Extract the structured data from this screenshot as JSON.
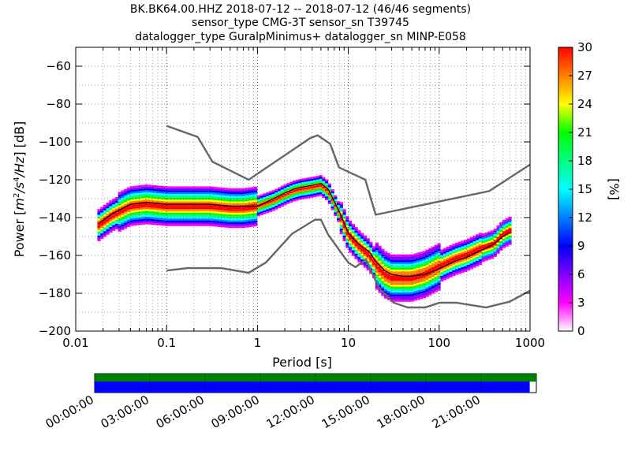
{
  "title": {
    "line1": "BK.BK64.00.HHZ   2018-07-12 -- 2018-07-12  (46/46 segments)",
    "line2": "sensor_type CMG-3T sensor_sn T39745",
    "line3": "datalogger_type GuralpMinimus+ datalogger_sn MINP-E058"
  },
  "chart_data": {
    "type": "heatmap",
    "description_kind": "probabilistic power spectral density",
    "xlabel": "Period [s]",
    "ylabel_parts": [
      "Power [",
      "m",
      "2",
      "/",
      "s",
      "4",
      "/",
      "Hz",
      "] [dB]"
    ],
    "xscale": "log",
    "xlim": [
      0.01,
      1000
    ],
    "ylim": [
      -200,
      -50
    ],
    "xtick_values": [
      0.01,
      0.1,
      1,
      10,
      100,
      1000
    ],
    "xtick_labels": [
      "0.01",
      "0.1",
      "1",
      "10",
      "100",
      "1000"
    ],
    "ytick_values": [
      -200,
      -180,
      -160,
      -140,
      -120,
      -100,
      -80,
      -60
    ],
    "ytick_labels": [
      "−200",
      "−180",
      "−160",
      "−140",
      "−120",
      "−100",
      "−80",
      "−60"
    ],
    "grid": true,
    "mode_curve": {
      "x": [
        0.018,
        0.025,
        0.04,
        0.06,
        0.1,
        0.2,
        0.3,
        0.5,
        0.7,
        1.0,
        1.5,
        2.0,
        2.5,
        3.0,
        4.0,
        5.0,
        6.0,
        8.0,
        10,
        13,
        17,
        20,
        25,
        30,
        40,
        50,
        70,
        100,
        150,
        200,
        300,
        400,
        500,
        600
      ],
      "y": [
        -144,
        -139,
        -134,
        -133,
        -134,
        -134,
        -134,
        -135,
        -135,
        -134,
        -131,
        -128,
        -126,
        -125,
        -124,
        -123,
        -126,
        -138,
        -149,
        -155,
        -160,
        -165,
        -170,
        -172,
        -172,
        -172,
        -170,
        -166,
        -162,
        -160,
        -156,
        -154,
        -149,
        -147
      ]
    },
    "mean_curve": {
      "x": [
        0.018,
        0.025,
        0.04,
        0.06,
        0.1,
        0.2,
        0.3,
        0.5,
        0.7,
        1.0,
        1.5,
        2.0,
        2.5,
        3.0,
        4.0,
        5.0,
        6.0,
        8.0,
        10,
        13,
        17,
        20,
        25,
        30,
        40,
        50,
        70,
        100,
        150,
        200,
        300,
        400,
        500,
        600
      ],
      "y": [
        -143,
        -138,
        -133,
        -132,
        -133,
        -133,
        -133,
        -134,
        -134,
        -134,
        -130,
        -127,
        -125,
        -124,
        -123,
        -122,
        -125,
        -137,
        -148,
        -154,
        -158,
        -163,
        -168,
        -170,
        -171,
        -171,
        -170,
        -167,
        -163,
        -161,
        -157,
        -154,
        -150,
        -148
      ]
    },
    "nhnm": {
      "x": [
        0.1,
        0.22,
        0.32,
        0.8,
        3.8,
        4.6,
        6.3,
        7.9,
        15.4,
        20,
        354.8,
        1000
      ],
      "y": [
        -91.5,
        -97.4,
        -110.5,
        -120,
        -98,
        -96.5,
        -101,
        -113.5,
        -120,
        -138.5,
        -126,
        -112
      ]
    },
    "nlnm": {
      "x": [
        0.1,
        0.17,
        0.4,
        0.8,
        1.24,
        2.4,
        4.3,
        5.0,
        6.0,
        10,
        12,
        15.6,
        21.9,
        31.6,
        45,
        70,
        101,
        154,
        328,
        600,
        1000
      ],
      "y": [
        -168,
        -166.7,
        -166.7,
        -169.2,
        -163.7,
        -148.6,
        -141.1,
        -141.1,
        -149,
        -163.8,
        -166.2,
        -162.1,
        -177.5,
        -185,
        -187.5,
        -187.5,
        -185,
        -185,
        -187.5,
        -184.4,
        -178.6
      ]
    },
    "colorbar": {
      "label": "[%]",
      "vmin": 0,
      "vmax": 30,
      "tick_values": [
        0,
        3,
        6,
        9,
        12,
        15,
        18,
        21,
        24,
        27,
        30
      ],
      "tick_labels": [
        "0",
        "3",
        "6",
        "9",
        "12",
        "15",
        "18",
        "21",
        "24",
        "27",
        "30"
      ],
      "colormap": [
        "#ffffff",
        "#ff00ff",
        "#8000ff",
        "#0000ff",
        "#0080ff",
        "#00ffff",
        "#00ff80",
        "#00ff00",
        "#ffff00",
        "#ff8000",
        "#ff0000"
      ]
    }
  },
  "coverage": {
    "time_labels": [
      "00:00:00",
      "03:00:00",
      "06:00:00",
      "09:00:00",
      "12:00:00",
      "15:00:00",
      "18:00:00",
      "21:00:00"
    ],
    "data_fraction": 0.985,
    "data_color": "#008000",
    "psd_color": "#0000ff"
  },
  "colors": {
    "noise_model": "#666666",
    "mode_line": "#000000"
  }
}
